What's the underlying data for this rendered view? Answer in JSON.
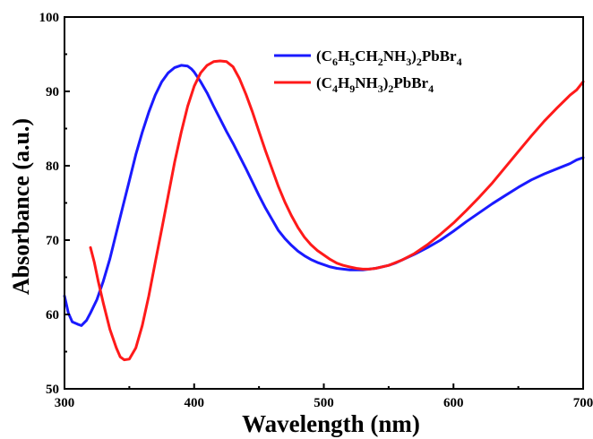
{
  "chart_data": {
    "type": "line",
    "xlabel": "Wavelength (nm)",
    "ylabel": "Absorbance (a.u.)",
    "xlim": [
      300,
      700
    ],
    "ylim": [
      50,
      100
    ],
    "xticks": [
      300,
      400,
      500,
      600,
      700
    ],
    "yticks": [
      50,
      60,
      70,
      80,
      90,
      100
    ],
    "grid": false,
    "legend_position": "top-right",
    "series": [
      {
        "name": "(C6H5CH2NH3)2PbBr4",
        "label_parts": [
          [
            "(C",
            "n"
          ],
          [
            "6",
            "sub"
          ],
          [
            "H",
            "n"
          ],
          [
            "5",
            "sub"
          ],
          [
            "CH",
            "n"
          ],
          [
            "2",
            "sub"
          ],
          [
            "NH",
            "n"
          ],
          [
            "3",
            "sub"
          ],
          [
            ")",
            "n"
          ],
          [
            "2",
            "sub"
          ],
          [
            "PbBr",
            "n"
          ],
          [
            "4",
            "sub"
          ]
        ],
        "color": "#1a1aff",
        "x": [
          300,
          303,
          306,
          310,
          313,
          317,
          320,
          325,
          330,
          335,
          340,
          345,
          350,
          355,
          360,
          365,
          370,
          375,
          380,
          385,
          390,
          395,
          398,
          400,
          405,
          410,
          415,
          420,
          425,
          430,
          435,
          440,
          445,
          450,
          455,
          460,
          465,
          470,
          475,
          480,
          485,
          490,
          495,
          500,
          505,
          510,
          515,
          520,
          525,
          530,
          535,
          540,
          545,
          550,
          555,
          560,
          570,
          580,
          590,
          600,
          610,
          620,
          630,
          640,
          650,
          660,
          670,
          680,
          690,
          695,
          700
        ],
        "y": [
          62.5,
          60.2,
          59.0,
          58.7,
          58.5,
          59.2,
          60.2,
          62.0,
          64.5,
          67.5,
          71.0,
          74.5,
          78.0,
          81.5,
          84.5,
          87.2,
          89.5,
          91.3,
          92.5,
          93.2,
          93.5,
          93.4,
          93.0,
          92.6,
          91.3,
          89.8,
          88.0,
          86.3,
          84.6,
          83.0,
          81.3,
          79.6,
          77.8,
          76.0,
          74.3,
          72.8,
          71.3,
          70.2,
          69.3,
          68.5,
          67.9,
          67.4,
          67.0,
          66.7,
          66.4,
          66.2,
          66.1,
          66.0,
          66.0,
          66.0,
          66.1,
          66.2,
          66.4,
          66.6,
          66.9,
          67.3,
          68.1,
          69.0,
          70.0,
          71.2,
          72.5,
          73.7,
          74.9,
          76.0,
          77.1,
          78.1,
          78.9,
          79.6,
          80.3,
          80.8,
          81.1
        ]
      },
      {
        "name": "(C4H9NH3)2PbBr4",
        "label_parts": [
          [
            "(C",
            "n"
          ],
          [
            "4",
            "sub"
          ],
          [
            "H",
            "n"
          ],
          [
            "9",
            "sub"
          ],
          [
            "NH",
            "n"
          ],
          [
            "3",
            "sub"
          ],
          [
            ")",
            "n"
          ],
          [
            "2",
            "sub"
          ],
          [
            "PbBr",
            "n"
          ],
          [
            "4",
            "sub"
          ]
        ],
        "color": "#ff1a1a",
        "x": [
          320,
          323,
          326,
          330,
          335,
          340,
          343,
          346,
          350,
          355,
          360,
          365,
          370,
          375,
          380,
          385,
          390,
          395,
          400,
          405,
          410,
          415,
          420,
          425,
          430,
          435,
          440,
          445,
          450,
          455,
          460,
          465,
          470,
          475,
          480,
          485,
          490,
          495,
          500,
          505,
          510,
          515,
          520,
          525,
          530,
          535,
          540,
          550,
          560,
          570,
          580,
          590,
          600,
          610,
          620,
          630,
          640,
          650,
          660,
          670,
          680,
          690,
          695,
          700
        ],
        "y": [
          69.0,
          67.0,
          64.5,
          61.5,
          58.0,
          55.5,
          54.3,
          53.9,
          54.0,
          55.5,
          58.5,
          62.5,
          67.0,
          71.5,
          76.0,
          80.5,
          84.5,
          88.0,
          90.7,
          92.5,
          93.5,
          94.0,
          94.1,
          94.0,
          93.3,
          91.7,
          89.6,
          87.2,
          84.6,
          82.0,
          79.6,
          77.2,
          75.1,
          73.3,
          71.7,
          70.4,
          69.4,
          68.6,
          68.0,
          67.4,
          66.9,
          66.6,
          66.4,
          66.2,
          66.1,
          66.1,
          66.2,
          66.6,
          67.3,
          68.2,
          69.4,
          70.8,
          72.3,
          74.0,
          75.8,
          77.7,
          79.8,
          81.9,
          84.0,
          86.0,
          87.8,
          89.5,
          90.2,
          91.3
        ]
      }
    ]
  }
}
